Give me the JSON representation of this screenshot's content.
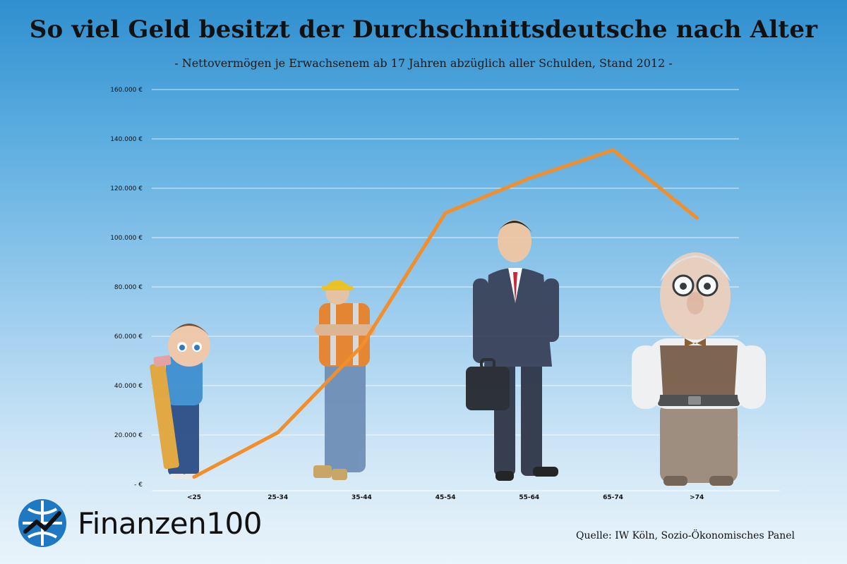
{
  "title": "So viel Geld besitzt der Durchschnittsdeutsche nach Alter",
  "subtitle": "- Nettovermögen je Erwachsenem ab 17 Jahren abzüglich aller Schulden, Stand 2012 -",
  "source": "Quelle: IW Köln, Sozio-Ökonomisches Panel",
  "brand": {
    "name": "Finanzen100",
    "color": "#1e78c2"
  },
  "colors": {
    "line": "#f28e2b",
    "grid": "#ffffff",
    "axis_text": "#111111"
  },
  "chart_data": {
    "type": "line",
    "title": "So viel Geld besitzt der Durchschnittsdeutsche nach Alter",
    "xlabel": "",
    "ylabel": "",
    "categories": [
      "<25",
      "25-34",
      "35-44",
      "45-54",
      "55-64",
      "65-74",
      ">74"
    ],
    "series": [
      {
        "name": "Nettovermögen",
        "values": [
          3000,
          21000,
          56000,
          110000,
          124000,
          135500,
          108000
        ]
      }
    ],
    "ylim": [
      0,
      160000
    ],
    "yticks": [
      0,
      20000,
      40000,
      60000,
      80000,
      100000,
      120000,
      140000,
      160000
    ],
    "ytick_labels": [
      "-  €",
      "20.000 €",
      "40.000 €",
      "60.000 €",
      "80.000 €",
      "100.000 €",
      "120.000 €",
      "140.000 €",
      "160.000 €"
    ],
    "grid": true
  }
}
